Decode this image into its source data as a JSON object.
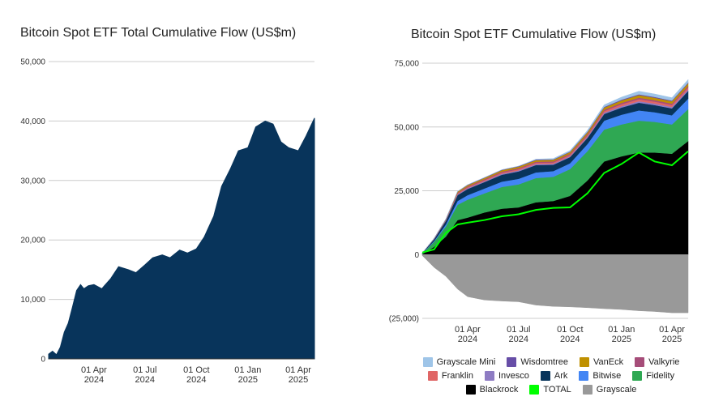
{
  "chart_data": [
    {
      "type": "area",
      "title": "Bitcoin Spot ETF Total Cumulative Flow (US$m)",
      "ylim": [
        0,
        50000
      ],
      "yticks": [
        0,
        10000,
        20000,
        30000,
        40000,
        50000
      ],
      "ytick_labels": [
        "0",
        "10,000",
        "20,000",
        "30,000",
        "40,000",
        "50,000"
      ],
      "xlim": [
        "2024-01-11",
        "2025-04-30"
      ],
      "xticks": [
        "2024-04-01",
        "2024-07-01",
        "2024-10-01",
        "2025-01-01",
        "2025-04-01"
      ],
      "xtick_labels": [
        [
          "01 Apr",
          "2024"
        ],
        [
          "01 Jul",
          "2024"
        ],
        [
          "01 Oct",
          "2024"
        ],
        [
          "01 Jan",
          "2025"
        ],
        [
          "01 Apr",
          "2025"
        ]
      ],
      "grid": true,
      "color": "#08345b",
      "x": [
        "2024-01-11",
        "2024-01-18",
        "2024-01-25",
        "2024-02-01",
        "2024-02-08",
        "2024-02-15",
        "2024-02-22",
        "2024-03-01",
        "2024-03-08",
        "2024-03-14",
        "2024-03-22",
        "2024-04-01",
        "2024-04-15",
        "2024-05-01",
        "2024-05-15",
        "2024-06-01",
        "2024-06-15",
        "2024-07-01",
        "2024-07-15",
        "2024-08-01",
        "2024-08-15",
        "2024-09-01",
        "2024-09-15",
        "2024-10-01",
        "2024-10-15",
        "2024-11-01",
        "2024-11-15",
        "2024-12-01",
        "2024-12-15",
        "2025-01-01",
        "2025-01-15",
        "2025-02-01",
        "2025-02-15",
        "2025-03-01",
        "2025-03-15",
        "2025-04-01",
        "2025-04-15",
        "2025-04-30"
      ],
      "values": [
        800,
        1300,
        700,
        2000,
        4500,
        6000,
        8500,
        11500,
        12500,
        11800,
        12300,
        12500,
        11800,
        13500,
        15500,
        15000,
        14500,
        15800,
        17000,
        17500,
        17000,
        18300,
        17800,
        18500,
        20500,
        24000,
        29000,
        32000,
        35000,
        35500,
        39000,
        40000,
        39500,
        36500,
        35500,
        35000,
        37500,
        40500
      ]
    },
    {
      "type": "area",
      "stacked": true,
      "title": "Bitcoin Spot ETF Cumulative Flow (US$m)",
      "ylim": [
        -25000,
        75000
      ],
      "yticks": [
        -25000,
        0,
        25000,
        50000,
        75000
      ],
      "ytick_labels": [
        "(25,000)",
        "0",
        "25,000",
        "50,000",
        "75,000"
      ],
      "xlim": [
        "2024-01-11",
        "2025-04-30"
      ],
      "xticks": [
        "2024-04-01",
        "2024-07-01",
        "2024-10-01",
        "2025-01-01",
        "2025-04-01"
      ],
      "xtick_labels": [
        [
          "01 Apr",
          "2024"
        ],
        [
          "01 Jul",
          "2024"
        ],
        [
          "01 Oct",
          "2024"
        ],
        [
          "01 Jan",
          "2025"
        ],
        [
          "01 Apr",
          "2025"
        ]
      ],
      "grid": true,
      "legend_position": "bottom",
      "x": [
        "2024-01-11",
        "2024-02-01",
        "2024-02-22",
        "2024-03-14",
        "2024-04-01",
        "2024-05-01",
        "2024-06-01",
        "2024-07-01",
        "2024-08-01",
        "2024-09-01",
        "2024-10-01",
        "2024-11-01",
        "2024-12-01",
        "2025-01-01",
        "2025-02-01",
        "2025-03-01",
        "2025-04-01",
        "2025-04-30"
      ],
      "series": [
        {
          "name": "Blackrock",
          "color": "#000000",
          "values": [
            200,
            3000,
            7000,
            13500,
            14500,
            16500,
            18000,
            18500,
            20500,
            21000,
            23000,
            29000,
            36500,
            38500,
            40000,
            40000,
            39500,
            44500
          ]
        },
        {
          "name": "Fidelity",
          "color": "#2fa853",
          "values": [
            200,
            2000,
            4000,
            6000,
            7000,
            7500,
            8500,
            9000,
            9500,
            9500,
            10500,
            11500,
            12500,
            12500,
            12500,
            12000,
            11500,
            12500
          ]
        },
        {
          "name": "Bitwise",
          "color": "#4285f4",
          "values": [
            50,
            300,
            800,
            1500,
            1800,
            1900,
            2100,
            2200,
            2200,
            2200,
            2300,
            2800,
            3500,
            3800,
            4000,
            3800,
            3600,
            4100
          ]
        },
        {
          "name": "Ark",
          "color": "#08345b",
          "values": [
            100,
            700,
            1400,
            2300,
            2400,
            2500,
            2700,
            2900,
            2900,
            2500,
            2400,
            2400,
            2600,
            2800,
            3000,
            2800,
            2700,
            3000
          ]
        },
        {
          "name": "Invesco",
          "color": "#8e7cc3",
          "values": [
            20,
            100,
            200,
            350,
            350,
            350,
            380,
            400,
            400,
            400,
            400,
            450,
            500,
            550,
            600,
            580,
            560,
            600
          ]
        },
        {
          "name": "Franklin",
          "color": "#e06666",
          "values": [
            10,
            80,
            160,
            300,
            350,
            380,
            420,
            450,
            470,
            480,
            500,
            550,
            650,
            750,
            800,
            780,
            760,
            800
          ]
        },
        {
          "name": "Valkyrie",
          "color": "#a64d79",
          "values": [
            20,
            80,
            150,
            300,
            350,
            380,
            400,
            420,
            430,
            430,
            440,
            460,
            500,
            550,
            580,
            560,
            550,
            580
          ]
        },
        {
          "name": "VanEck",
          "color": "#bf9000",
          "values": [
            20,
            60,
            150,
            400,
            450,
            500,
            550,
            580,
            600,
            610,
            620,
            700,
            850,
            950,
            1000,
            950,
            900,
            1000
          ]
        },
        {
          "name": "Wisdomtree",
          "color": "#674ea7",
          "values": [
            5,
            20,
            40,
            100,
            150,
            160,
            180,
            200,
            210,
            210,
            220,
            240,
            280,
            300,
            320,
            310,
            300,
            320
          ]
        },
        {
          "name": "Grayscale Mini",
          "color": "#9fc5e8",
          "values": [
            0,
            0,
            0,
            0,
            0,
            0,
            0,
            0,
            200,
            300,
            400,
            550,
            800,
            1000,
            1200,
            1150,
            1100,
            1200
          ]
        },
        {
          "name": "Grayscale",
          "color": "#999999",
          "values": [
            -400,
            -5000,
            -8500,
            -13500,
            -16500,
            -17800,
            -18200,
            -18500,
            -19800,
            -20300,
            -20500,
            -20800,
            -21200,
            -21500,
            -22000,
            -22300,
            -22800,
            -22800
          ]
        },
        {
          "name": "TOTAL",
          "color": "#00ff00",
          "type": "line",
          "values": [
            800,
            2000,
            8500,
            11800,
            12500,
            13500,
            15000,
            15800,
            17500,
            18300,
            18500,
            24000,
            32000,
            35500,
            40000,
            36500,
            35000,
            40500
          ]
        }
      ],
      "legend": [
        [
          "Grayscale Mini",
          "Wisdomtree",
          "VanEck",
          "Valkyrie"
        ],
        [
          "Franklin",
          "Invesco",
          "Ark",
          "Bitwise",
          "Fidelity"
        ],
        [
          "Blackrock",
          "TOTAL",
          "Grayscale"
        ]
      ]
    }
  ]
}
